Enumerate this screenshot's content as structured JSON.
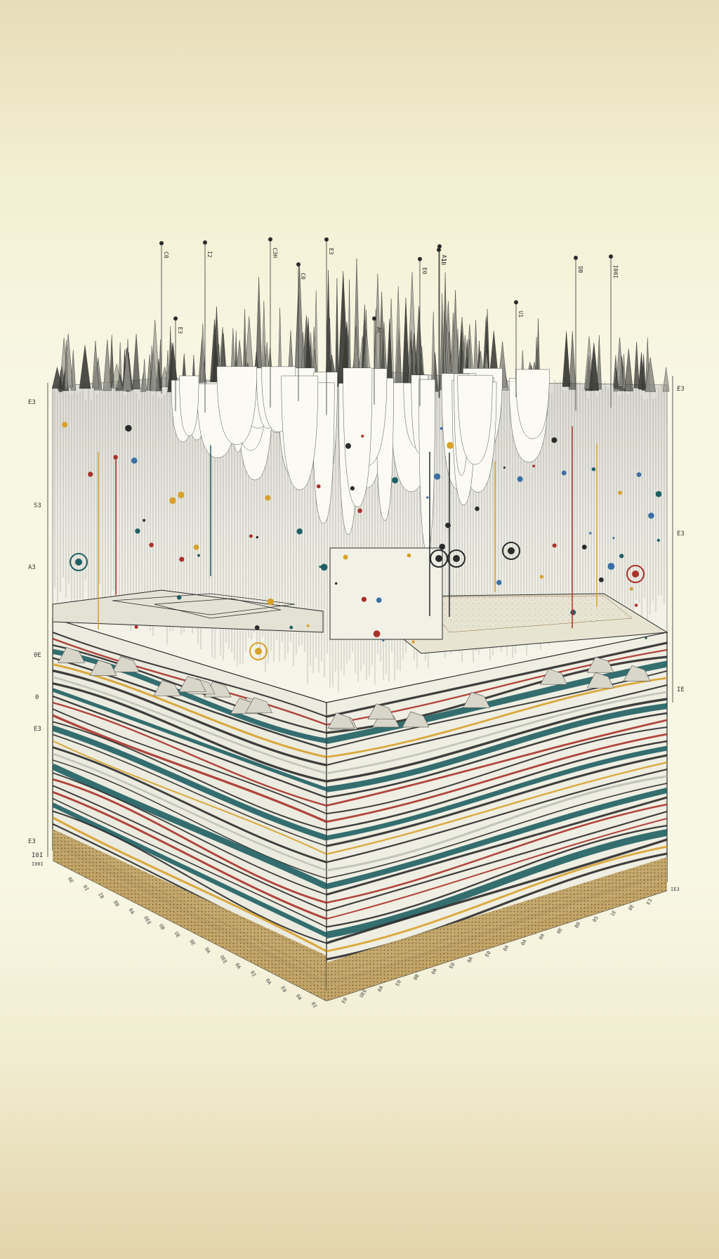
{
  "illustration": {
    "palette": {
      "paper": "#f8f7e4",
      "ink": "#2b2b2b",
      "red": "#a8322a",
      "teal": "#1f5f63",
      "gold": "#d7a12c",
      "sand": "#b89a5c",
      "grey": "#b9bbb2"
    },
    "icons": [
      "seismic-spike",
      "marker-pin",
      "target-ring"
    ]
  },
  "labels": {
    "pin_tags": [
      "C3H",
      "C0",
      "E3",
      "AC",
      "E0",
      "A1",
      "I00I",
      "E3",
      "C0",
      "1B",
      "U1",
      "DB",
      "I2"
    ],
    "left_axis": [
      "E3",
      "A3",
      "0",
      "0E",
      "E3",
      "E3",
      "I0I",
      "S3"
    ],
    "right_axis": [
      "E3",
      "E3",
      "IE"
    ],
    "front_left_ticks": [
      "0E",
      "0I",
      "IB",
      "8B",
      "0A",
      "OEE",
      "OB",
      "OE",
      "8E",
      "0A",
      "OEE",
      "0A",
      "0I",
      "0A",
      "E0",
      "0A",
      "0I"
    ],
    "front_right_ticks": [
      "E0",
      "OEE",
      "0A",
      "E0",
      "0B",
      "0A",
      "E0",
      "0A",
      "E0",
      "0A",
      "0A",
      "0A",
      "0E",
      "B0",
      "0S",
      "1E",
      "0E",
      "E3"
    ],
    "corner_left": "I00I",
    "corner_right": "IE3"
  }
}
